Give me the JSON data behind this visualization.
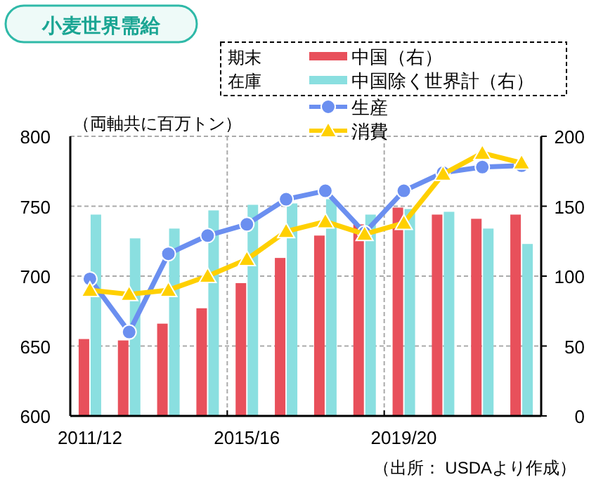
{
  "chart_data": {
    "type": "bar",
    "title": "小麦世界需給",
    "legend_title": "期末在庫",
    "categories": [
      "2011/12",
      null,
      null,
      null,
      "2015/16",
      null,
      null,
      null,
      "2019/20",
      null,
      null,
      null
    ],
    "series": [
      {
        "name": "中国（右）",
        "axis": "y2",
        "color": "#e8505b",
        "values": [
          55,
          54,
          66,
          77,
          95,
          113,
          129,
          137,
          149,
          144,
          141,
          144
        ]
      },
      {
        "name": "中国除く世界計（右）",
        "axis": "y2",
        "color": "#8adfe0",
        "values": [
          144,
          127,
          134,
          147,
          151,
          152,
          155,
          144,
          148,
          146,
          134,
          123
        ]
      },
      {
        "name": "生産",
        "type": "line",
        "marker": "circle",
        "color": "#6b8ff0",
        "values": [
          698,
          660,
          716,
          729,
          737,
          755,
          761,
          731,
          761,
          774,
          778,
          779
        ]
      },
      {
        "name": "消費",
        "type": "line",
        "marker": "triangle",
        "color": "#ffd000",
        "values": [
          690,
          687,
          690,
          700,
          712,
          732,
          739,
          730,
          738,
          773,
          788,
          781
        ]
      }
    ],
    "ylim": [
      600,
      800
    ],
    "yticks": [
      600,
      650,
      700,
      750,
      800
    ],
    "y2lim": [
      0,
      200
    ],
    "y2ticks": [
      0,
      50,
      100,
      150,
      200
    ],
    "grid": true,
    "legend": "top",
    "annotations": [
      "（両軸共に百万トン）",
      "（出所： USDAより作成）"
    ]
  }
}
